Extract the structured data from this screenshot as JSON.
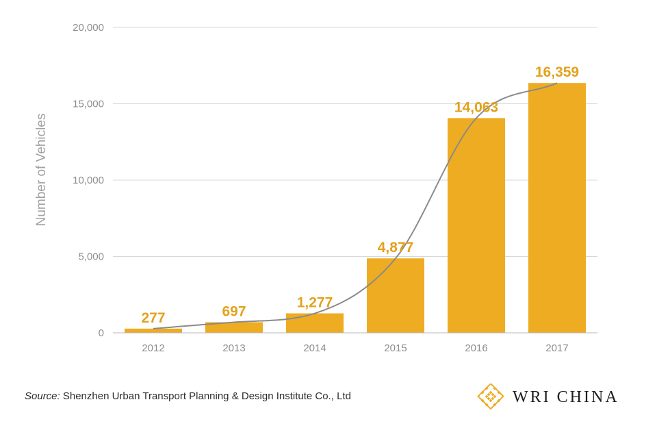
{
  "chart_data": {
    "type": "bar",
    "categories": [
      "2012",
      "2013",
      "2014",
      "2015",
      "2016",
      "2017"
    ],
    "values": [
      277,
      697,
      1277,
      4877,
      14063,
      16359
    ],
    "data_labels": [
      "277",
      "697",
      "1,277",
      "4,877",
      "14,063",
      "16,359"
    ],
    "title": "",
    "xlabel": "",
    "ylabel": "Number of Vehicles",
    "ylim": [
      0,
      20000
    ],
    "yticks": [
      0,
      5000,
      10000,
      15000,
      20000
    ],
    "ytick_labels": [
      "0",
      "5,000",
      "10,000",
      "15,000",
      "20,000"
    ],
    "trend_line": true,
    "grid": "horizontal",
    "colors": {
      "bar": "#eeac22",
      "data_label": "#e3a21c",
      "trend_line": "#8a8a8a",
      "grid": "#d7d7d7"
    }
  },
  "source": {
    "prefix": "Source:",
    "text": " Shenzhen Urban Transport Planning & Design Institute Co., Ltd"
  },
  "brand": {
    "name": "WRI CHINA",
    "logo_icon": "wri-knot-icon",
    "logo_color": "#eeac22"
  }
}
